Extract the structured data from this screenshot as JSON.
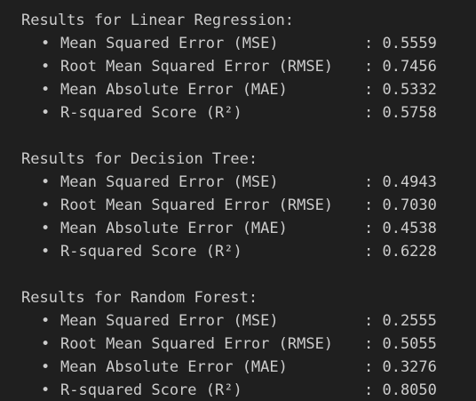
{
  "colors": {
    "background": "#1f1f1f",
    "text": "#cccccc"
  },
  "bullet_char": "•",
  "sections": [
    {
      "heading": "Results for Linear Regression:",
      "metrics": [
        {
          "label": "Mean Squared Error (MSE)",
          "value": ": 0.5559"
        },
        {
          "label": "Root Mean Squared Error (RMSE)",
          "value": ": 0.7456"
        },
        {
          "label": "Mean Absolute Error (MAE)",
          "value": ": 0.5332"
        },
        {
          "label": "R-squared Score (R²)",
          "value": ": 0.5758"
        }
      ]
    },
    {
      "heading": "Results for Decision Tree:",
      "metrics": [
        {
          "label": "Mean Squared Error (MSE)",
          "value": ": 0.4943"
        },
        {
          "label": "Root Mean Squared Error (RMSE)",
          "value": ": 0.7030"
        },
        {
          "label": "Mean Absolute Error (MAE)",
          "value": ": 0.4538"
        },
        {
          "label": "R-squared Score (R²)",
          "value": ": 0.6228"
        }
      ]
    },
    {
      "heading": "Results for Random Forest:",
      "metrics": [
        {
          "label": "Mean Squared Error (MSE)",
          "value": ": 0.2555"
        },
        {
          "label": "Root Mean Squared Error (RMSE)",
          "value": ": 0.5055"
        },
        {
          "label": "Mean Absolute Error (MAE)",
          "value": ": 0.3276"
        },
        {
          "label": "R-squared Score (R²)",
          "value": ": 0.8050"
        }
      ]
    }
  ]
}
